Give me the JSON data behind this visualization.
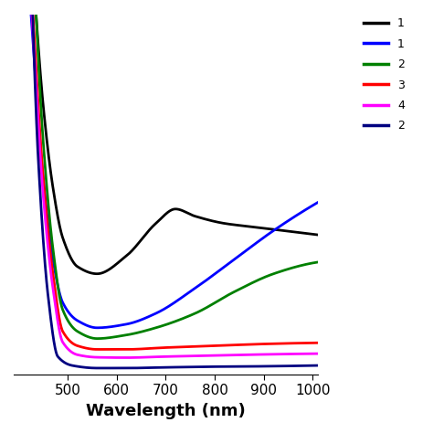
{
  "xlabel": "Wavelength (nm)",
  "background_color": "#ffffff",
  "linewidth": 2.0,
  "xlim": [
    390,
    1010
  ],
  "ylim": [
    0.0,
    1.0
  ],
  "legend_colors": [
    "#000000",
    "#0000ff",
    "#008000",
    "#ff0000",
    "#ff00ff",
    "#000080"
  ],
  "legend_labels": [
    "1",
    "1",
    "2",
    "3",
    "4",
    "2"
  ],
  "curves": {
    "black": {
      "color": "#000000",
      "anchors_x": [
        390,
        420,
        450,
        470,
        490,
        520,
        560,
        620,
        680,
        720,
        760,
        820,
        880,
        940,
        1000
      ],
      "anchors_y": [
        1.8,
        1.3,
        0.75,
        0.52,
        0.38,
        0.3,
        0.28,
        0.33,
        0.42,
        0.46,
        0.44,
        0.42,
        0.41,
        0.4,
        0.39
      ]
    },
    "blue": {
      "color": "#0000ff",
      "anchors_x": [
        390,
        420,
        450,
        470,
        490,
        520,
        560,
        620,
        680,
        760,
        840,
        920,
        1000
      ],
      "anchors_y": [
        1.6,
        1.1,
        0.55,
        0.32,
        0.2,
        0.15,
        0.13,
        0.14,
        0.17,
        0.24,
        0.32,
        0.4,
        0.47
      ]
    },
    "green": {
      "color": "#008000",
      "anchors_x": [
        390,
        420,
        450,
        470,
        490,
        520,
        560,
        620,
        680,
        760,
        840,
        920,
        1000
      ],
      "anchors_y": [
        1.9,
        1.4,
        0.65,
        0.35,
        0.18,
        0.12,
        0.1,
        0.11,
        0.13,
        0.17,
        0.23,
        0.28,
        0.31
      ]
    },
    "red": {
      "color": "#ff0000",
      "anchors_x": [
        390,
        420,
        450,
        470,
        490,
        520,
        560,
        620,
        700,
        800,
        900,
        1000
      ],
      "anchors_y": [
        1.7,
        1.2,
        0.55,
        0.28,
        0.12,
        0.08,
        0.07,
        0.07,
        0.075,
        0.08,
        0.085,
        0.088
      ]
    },
    "magenta": {
      "color": "#ff00ff",
      "anchors_x": [
        390,
        420,
        450,
        470,
        490,
        520,
        560,
        620,
        700,
        800,
        900,
        1000
      ],
      "anchors_y": [
        1.65,
        1.15,
        0.5,
        0.24,
        0.09,
        0.055,
        0.048,
        0.047,
        0.05,
        0.053,
        0.056,
        0.058
      ]
    },
    "navy": {
      "color": "#000080",
      "anchors_x": [
        390,
        415,
        440,
        460,
        480,
        510,
        560,
        620,
        700,
        800,
        900,
        1000
      ],
      "anchors_y": [
        2.0,
        1.5,
        0.6,
        0.22,
        0.05,
        0.025,
        0.018,
        0.018,
        0.02,
        0.022,
        0.023,
        0.025
      ]
    }
  }
}
